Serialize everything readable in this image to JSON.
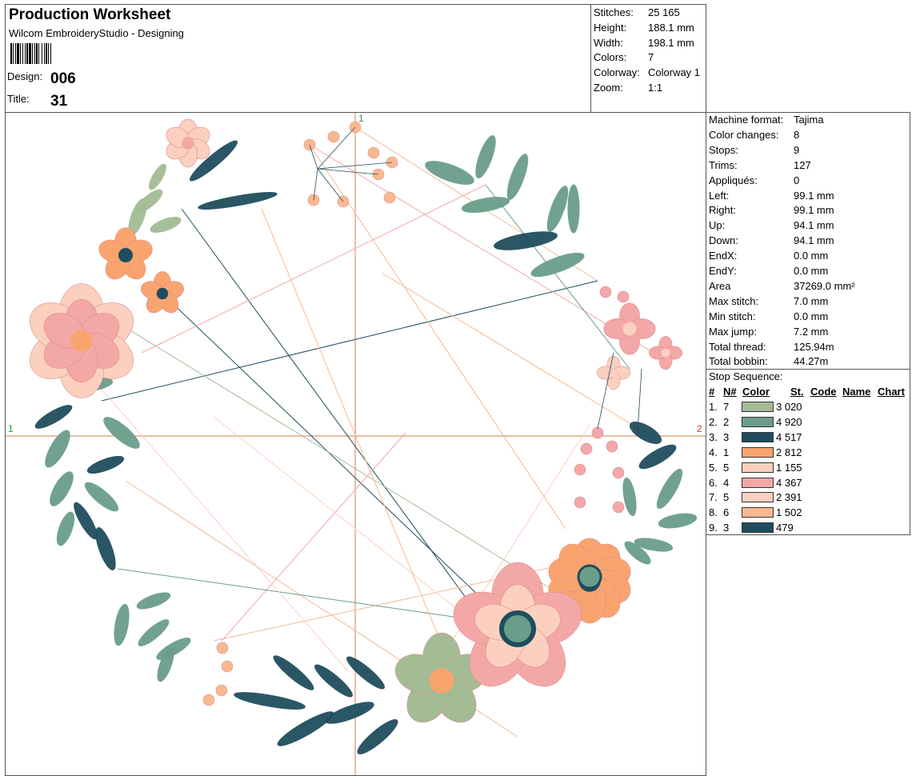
{
  "header": {
    "title": "Production Worksheet",
    "subtitle": "Wilcom EmbroideryStudio - Designing",
    "design_label": "Design:",
    "design_value": "006",
    "title_label": "Title:",
    "title_value": "31"
  },
  "stats": [
    {
      "label": "Stitches:",
      "value": "25 165"
    },
    {
      "label": "Height:",
      "value": "188.1 mm"
    },
    {
      "label": "Width:",
      "value": "198.1 mm"
    },
    {
      "label": "Colors:",
      "value": "7"
    },
    {
      "label": "Colorway:",
      "value": "Colorway 1"
    },
    {
      "label": "Zoom:",
      "value": "1:1"
    }
  ],
  "machine": [
    {
      "label": "Machine format:",
      "value": "Tajima"
    },
    {
      "label": "Color changes:",
      "value": "8"
    },
    {
      "label": "Stops:",
      "value": "9"
    },
    {
      "label": "Trims:",
      "value": "127"
    },
    {
      "label": "Appliqués:",
      "value": "0"
    },
    {
      "label": "Left:",
      "value": "99.1 mm"
    },
    {
      "label": "Right:",
      "value": "99.1 mm"
    },
    {
      "label": "Up:",
      "value": "94.1 mm"
    },
    {
      "label": "Down:",
      "value": "94.1 mm"
    },
    {
      "label": "EndX:",
      "value": "0.0 mm"
    },
    {
      "label": "EndY:",
      "value": "0.0 mm"
    },
    {
      "label": "Area",
      "value": "37269.0 mm²"
    },
    {
      "label": "Max stitch:",
      "value": "7.0 mm"
    },
    {
      "label": "Min stitch:",
      "value": "0.0 mm"
    },
    {
      "label": "Max jump:",
      "value": "7.2 mm"
    },
    {
      "label": "Total thread:",
      "value": "125.94m"
    },
    {
      "label": "Total bobbin:",
      "value": "44.27m"
    }
  ],
  "stop_sequence": {
    "title": "Stop Sequence:",
    "columns": [
      "#",
      "N#",
      "Color",
      "St.",
      "Code",
      "Name",
      "Chart"
    ],
    "rows": [
      {
        "num": "1.",
        "n": "7",
        "color": "#a3bc94",
        "st": "3 020"
      },
      {
        "num": "2.",
        "n": "2",
        "color": "#6a9e8a",
        "st": "4 920"
      },
      {
        "num": "3.",
        "n": "3",
        "color": "#1f4d5e",
        "st": "4 517"
      },
      {
        "num": "4.",
        "n": "1",
        "color": "#f9a46e",
        "st": "2 812"
      },
      {
        "num": "5.",
        "n": "5",
        "color": "#fbd0bf",
        "st": "1 155"
      },
      {
        "num": "6.",
        "n": "4",
        "color": "#f4a7a7",
        "st": "4 367"
      },
      {
        "num": "7.",
        "n": "5",
        "color": "#fbd0bf",
        "st": "2 391"
      },
      {
        "num": "8.",
        "n": "6",
        "color": "#f9b98f",
        "st": "1 502"
      },
      {
        "num": "9.",
        "n": "3",
        "color": "#1f4d5e",
        "st": "479"
      }
    ]
  },
  "axis_markers": {
    "top": "1",
    "left": "1",
    "right": "2"
  }
}
